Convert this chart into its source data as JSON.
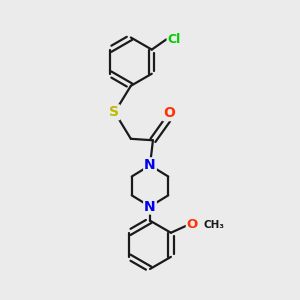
{
  "bg_color": "#ebebeb",
  "bond_color": "#1a1a1a",
  "bond_width": 1.6,
  "atom_colors": {
    "Cl": "#00cc00",
    "S": "#bbbb00",
    "O": "#ff3300",
    "N": "#0000ee",
    "C": "#1a1a1a"
  },
  "fs": 9.5
}
